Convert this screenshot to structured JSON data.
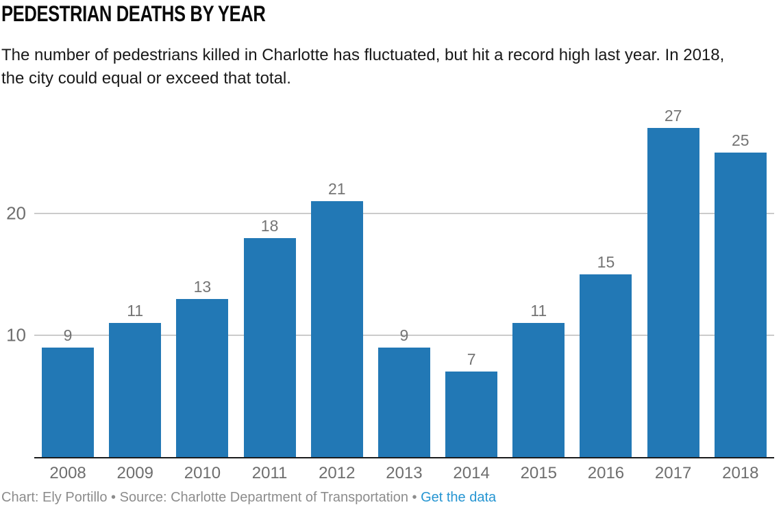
{
  "header": {
    "title": "PEDESTRIAN DEATHS BY YEAR",
    "subtitle_line1": "The number of pedestrians killed in Charlotte has fluctuated, but hit a record high last year. In 2018,",
    "subtitle_line2": "the city could equal or exceed that total."
  },
  "footer": {
    "byline": "Chart: Ely Portillo • Source: Charlotte Department of Transportation •",
    "link_label": "Get the data",
    "link_color": "#2595d2"
  },
  "chart_data": {
    "type": "bar",
    "title": "PEDESTRIAN DEATHS BY YEAR",
    "categories": [
      "2008",
      "2009",
      "2010",
      "2011",
      "2012",
      "2013",
      "2014",
      "2015",
      "2016",
      "2017",
      "2018"
    ],
    "values": [
      9,
      11,
      13,
      18,
      21,
      9,
      7,
      11,
      15,
      27,
      25
    ],
    "xlabel": "",
    "ylabel": "",
    "ylim": [
      0,
      30
    ],
    "yticks": [
      10,
      20
    ],
    "grid": true,
    "legend": "none",
    "bar_color": "#2278b5",
    "value_label_color": "#747474",
    "grid_color": "#cbcbcb",
    "axis_color": "#1a1b1c"
  }
}
